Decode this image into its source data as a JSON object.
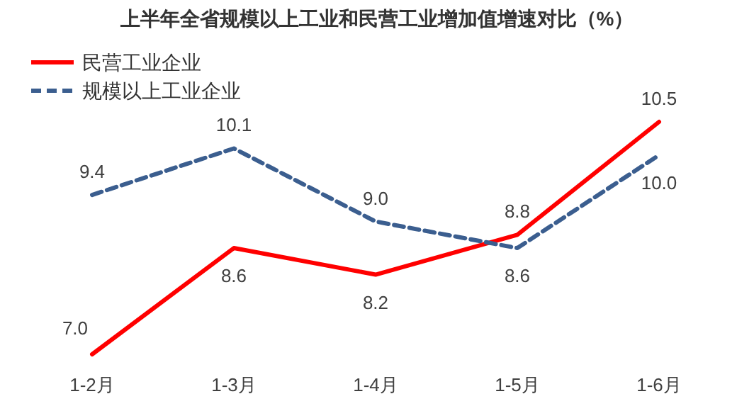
{
  "chart_data": {
    "type": "line",
    "title": "上半年全省规模以上工业和民营工业增加值增速对比（%）",
    "categories": [
      "1-2月",
      "1-3月",
      "1-4月",
      "1-5月",
      "1-6月"
    ],
    "series": [
      {
        "name": "民营工业企业",
        "color": "#ff0000",
        "line_style": "solid",
        "values": [
          7.0,
          8.6,
          8.2,
          8.8,
          10.5
        ],
        "value_labels": [
          "7.0",
          "8.6",
          "8.2",
          "8.8",
          "10.5"
        ]
      },
      {
        "name": "规模以上工业企业",
        "color": "#3b5e8f",
        "line_style": "dashed",
        "values": [
          9.4,
          10.1,
          9.0,
          8.6,
          10.0
        ],
        "value_labels": [
          "9.4",
          "10.1",
          "9.0",
          "8.6",
          "10.0"
        ]
      }
    ],
    "legend": "top left",
    "grid": false,
    "marker": "none"
  }
}
